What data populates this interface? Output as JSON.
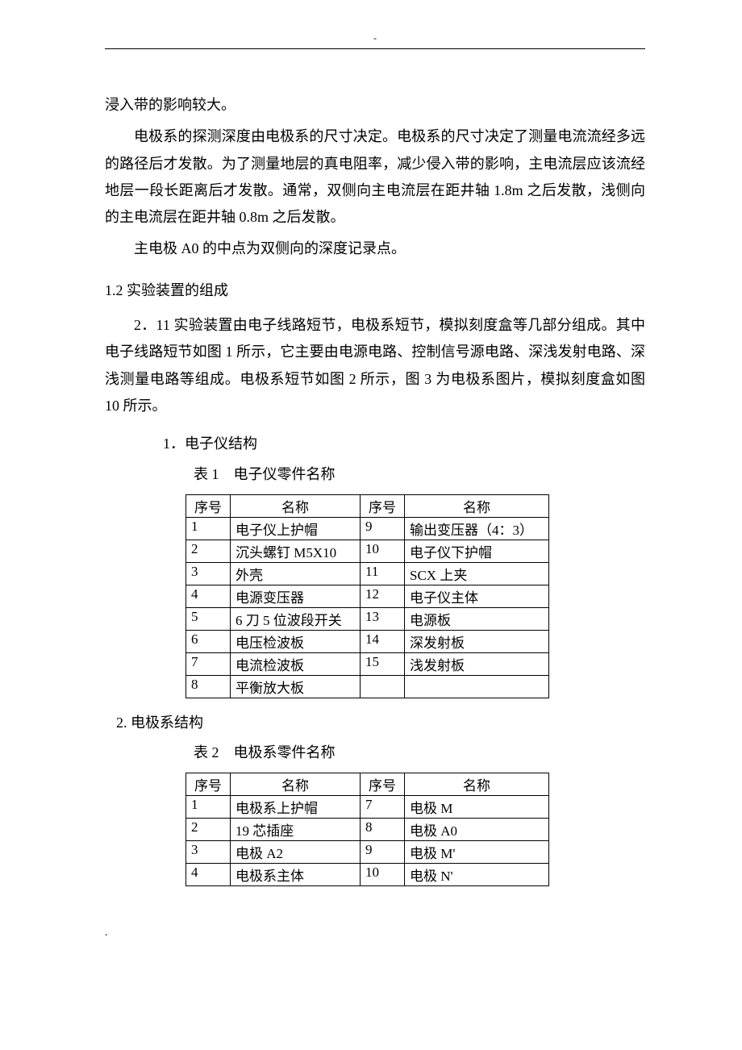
{
  "topDash": "-",
  "para1": "浸入带的影响较大。",
  "para2": "电极系的探测深度由电极系的尺寸决定。电极系的尺寸决定了测量电流流经多远的路径后才发散。为了测量地层的真电阻率，减少侵入带的影响，主电流层应该流经地层一段长距离后才发散。通常，双侧向主电流层在距井轴 1.8m 之后发散，浅侧向的主电流层在距井轴 0.8m 之后发散。",
  "para3": "主电极 A0 的中点为双侧向的深度记录点。",
  "section12": "1.2 实验装置的组成",
  "para4": "2．11 实验装置由电子线路短节，电极系短节，模拟刻度盒等几部分组成。其中电子线路短节如图 1 所示，它主要由电源电路、控制信号源电路、深浅发射电路、深浅测量电路等组成。电极系短节如图 2 所示，图 3 为电极系图片，模拟刻度盒如图 10 所示。",
  "sub1": "1．电子仪结构",
  "caption1": "表 1　电子仪零件名称",
  "t1": {
    "headers": [
      "序号",
      "名称",
      "序号",
      "名称"
    ],
    "rows": [
      [
        "1",
        "电子仪上护帽",
        "9",
        "输出变压器（4：3）"
      ],
      [
        "2",
        "沉头螺钉 M5X10",
        "10",
        "电子仪下护帽"
      ],
      [
        "3",
        "外壳",
        "11",
        "SCX 上夹"
      ],
      [
        "4",
        "电源变压器",
        "12",
        "电子仪主体"
      ],
      [
        "5",
        "6 刀 5 位波段开关",
        "13",
        "电源板"
      ],
      [
        "6",
        "电压检波板",
        "14",
        "深发射板"
      ],
      [
        "7",
        "电流检波板",
        "15",
        "浅发射板"
      ],
      [
        "8",
        "平衡放大板",
        "",
        ""
      ]
    ]
  },
  "sub2": "2. 电极系结构",
  "caption2": "表 2　电极系零件名称",
  "t2": {
    "headers": [
      "序号",
      "名称",
      "序号",
      "名称"
    ],
    "rows": [
      [
        "1",
        "电极系上护帽",
        "7",
        "电极 M"
      ],
      [
        "2",
        "19 芯插座",
        "8",
        "电极 A0"
      ],
      [
        "3",
        "电极 A2",
        "9",
        "电极 M'"
      ],
      [
        "4",
        "电极系主体",
        "10",
        "电极 N'"
      ]
    ]
  },
  "footerDot": "."
}
